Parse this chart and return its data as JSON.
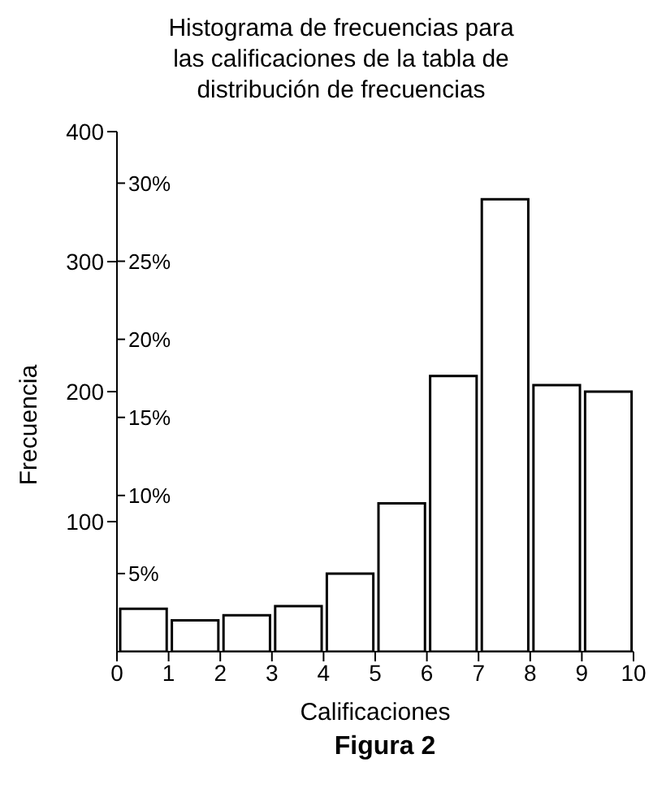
{
  "chart_data": {
    "type": "histogram",
    "title": "Histograma de frecuencias para las calificaciones de la tabla de distribución de frecuencias",
    "xlabel": "Calificaciones",
    "ylabel": "Frecuencia",
    "bins": [
      0,
      1,
      2,
      3,
      4,
      5,
      6,
      7,
      8,
      9,
      10
    ],
    "values": [
      33,
      24,
      28,
      35,
      60,
      114,
      212,
      348,
      205,
      200
    ],
    "color": "#ffffff",
    "xlim": [
      0,
      10
    ],
    "xticks": [
      0,
      1,
      2,
      3,
      4,
      5,
      6,
      7,
      8,
      9,
      10
    ],
    "ylim": [
      0,
      400
    ],
    "yticks": [
      100,
      200,
      300,
      400
    ],
    "y2lim": [
      0,
      33.3
    ],
    "y2ticks": [
      {
        "value": 5,
        "label": "5%"
      },
      {
        "value": 10,
        "label": "10%"
      },
      {
        "value": 15,
        "label": "15%"
      },
      {
        "value": 20,
        "label": "20%"
      },
      {
        "value": 25,
        "label": "25%"
      },
      {
        "value": 30,
        "label": "30%"
      }
    ],
    "annotations": [
      "Figura 2"
    ],
    "grid": false,
    "legend": false
  }
}
